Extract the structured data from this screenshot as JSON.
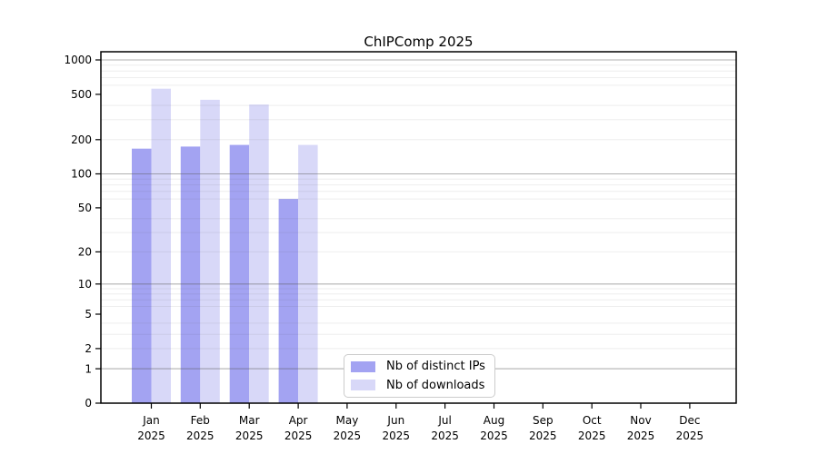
{
  "chart_data": {
    "type": "bar",
    "title": "ChIPComp 2025",
    "categories": [
      "Jan 2025",
      "Feb 2025",
      "Mar 2025",
      "Apr 2025",
      "May 2025",
      "Jun 2025",
      "Jul 2025",
      "Aug 2025",
      "Sep 2025",
      "Oct 2025",
      "Nov 2025",
      "Dec 2025"
    ],
    "series": [
      {
        "name": "Nb of distinct IPs",
        "color": "#a3a3f2",
        "values": [
          167,
          174,
          180,
          60,
          0,
          0,
          0,
          0,
          0,
          0,
          0,
          0
        ]
      },
      {
        "name": "Nb of downloads",
        "color": "#d8d8f8",
        "values": [
          560,
          448,
          406,
          180,
          0,
          0,
          0,
          0,
          0,
          0,
          0,
          0
        ]
      }
    ],
    "xlabel": "",
    "ylabel": "",
    "yscale": "log1p",
    "ylim": [
      0,
      1000
    ],
    "yticks": [
      0,
      1,
      2,
      5,
      10,
      20,
      50,
      100,
      200,
      500,
      1000
    ],
    "grid": {
      "major_ticks": [
        1,
        10,
        100,
        1000
      ],
      "minor_ticks": [
        2,
        3,
        4,
        6,
        7,
        8,
        9,
        20,
        30,
        40,
        60,
        70,
        80,
        90,
        200,
        300,
        400,
        600,
        700,
        800,
        900
      ],
      "major_color": "#5a5a5a",
      "minor_color": "#5a5a5a",
      "orientation": "horizontal"
    },
    "legend": {
      "position": "lower-center-inside",
      "border_color": "#cccccc",
      "background": "#ffffff"
    }
  }
}
